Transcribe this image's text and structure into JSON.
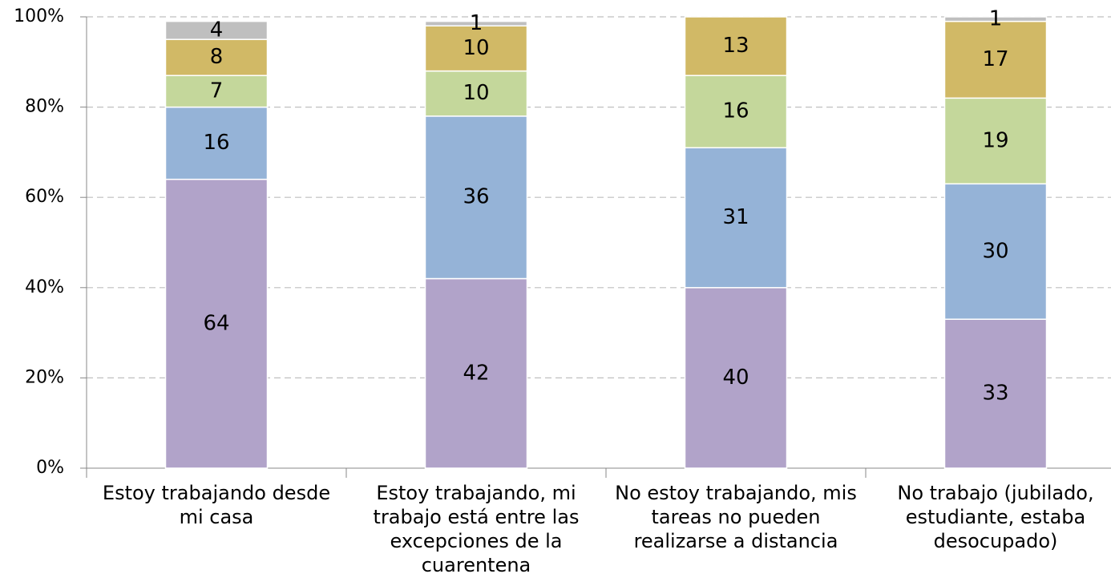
{
  "chart_data": {
    "type": "stacked_bar",
    "categories": [
      "Estoy trabajando desde mi casa",
      "Estoy trabajando, mi trabajo está entre las excepciones de la cuarentena",
      "No estoy trabajando, mis tareas no pueden realizarse a distancia",
      "No trabajo (jubilado, estudiante, estaba desocupado)"
    ],
    "series": [
      {
        "color": "#b1a3c9",
        "values": [
          64,
          42,
          40,
          33
        ]
      },
      {
        "color": "#95b3d7",
        "values": [
          16,
          36,
          31,
          30
        ]
      },
      {
        "color": "#c4d79b",
        "values": [
          7,
          10,
          16,
          19
        ]
      },
      {
        "color": "#d1b966",
        "values": [
          8,
          10,
          13,
          17
        ]
      },
      {
        "color": "#bfbfbf",
        "values": [
          4,
          1,
          null,
          1
        ]
      }
    ],
    "ylim": [
      0,
      100
    ],
    "yticks": [
      {
        "value": 0,
        "label": "0%"
      },
      {
        "value": 20,
        "label": "20%"
      },
      {
        "value": 40,
        "label": "40%"
      },
      {
        "value": 60,
        "label": "60%"
      },
      {
        "value": 80,
        "label": "80%"
      },
      {
        "value": 100,
        "label": "100%"
      }
    ],
    "grid": true
  }
}
